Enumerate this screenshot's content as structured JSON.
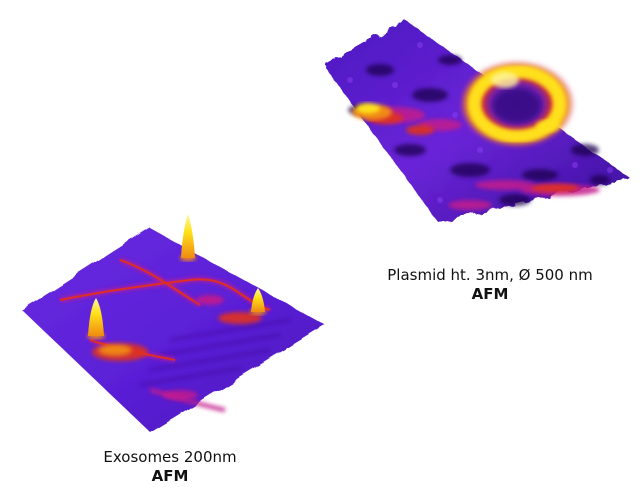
{
  "figure": {
    "panels": [
      {
        "id": "plasmid",
        "caption": "Plasmid ht. 3nm, Ø 500 nm",
        "method": "AFM"
      },
      {
        "id": "exosomes",
        "caption": "Exosomes 200nm",
        "method": "AFM"
      }
    ],
    "colors": {
      "base_purple": "#5a1fd6",
      "dark_purple": "#2a0a6e",
      "magenta": "#c41a8c",
      "red": "#e0301e",
      "orange": "#f08a12",
      "yellow": "#ffe21a"
    }
  }
}
